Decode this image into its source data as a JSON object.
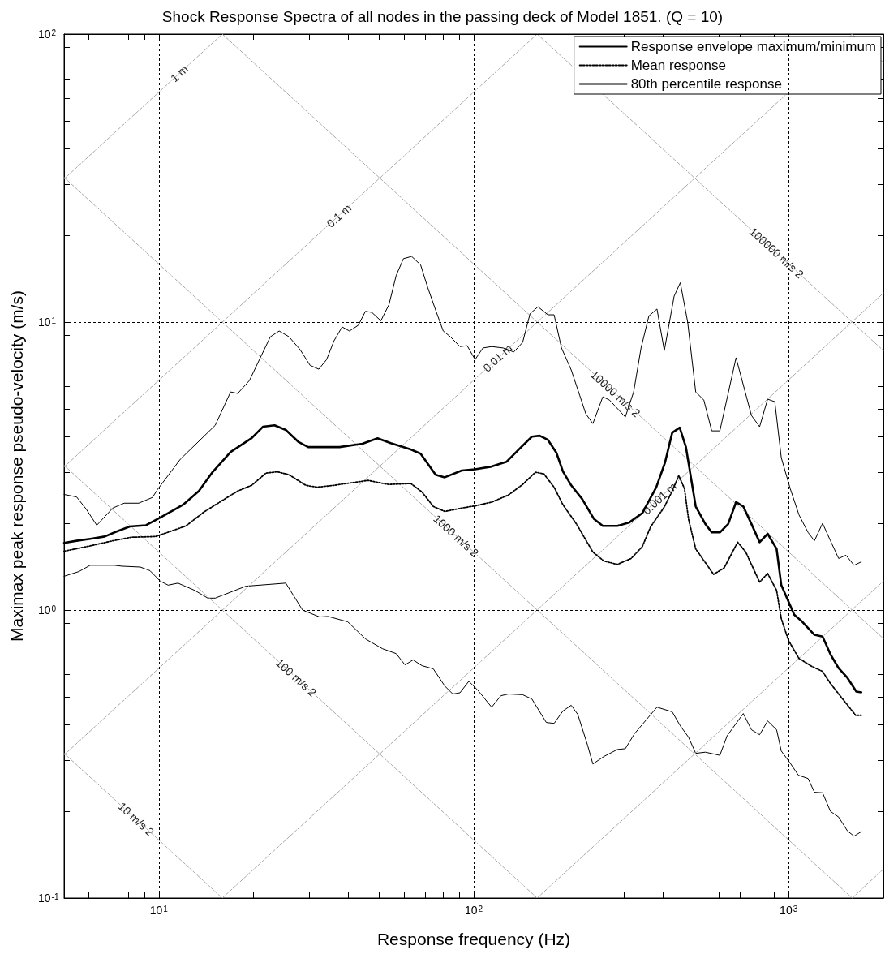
{
  "chart_data": {
    "type": "line",
    "title": "Shock Response Spectra of all nodes in the passing deck of Model 1851. (Q = 10)",
    "xlabel": "Response frequency (Hz)",
    "ylabel": "Maximax peak response pseudo-velocity (m/s)",
    "log": "xy",
    "grid": true,
    "legend": "top right",
    "marker": "none",
    "xlim": [
      5,
      2000
    ],
    "ylim": [
      0.1,
      100
    ],
    "xticks": [
      {
        "value": 5,
        "label": null
      },
      {
        "value": 6,
        "label": null
      },
      {
        "value": 7,
        "label": null
      },
      {
        "value": 8,
        "label": null
      },
      {
        "value": 9,
        "label": null
      },
      {
        "value": 10,
        "label": "10$^{1}$"
      },
      {
        "value": 20,
        "label": null
      },
      {
        "value": 30,
        "label": null
      },
      {
        "value": 40,
        "label": null
      },
      {
        "value": 50,
        "label": null
      },
      {
        "value": 60,
        "label": null
      },
      {
        "value": 70,
        "label": null
      },
      {
        "value": 80,
        "label": null
      },
      {
        "value": 90,
        "label": null
      },
      {
        "value": 100,
        "label": "10$^{2}$"
      },
      {
        "value": 200,
        "label": null
      },
      {
        "value": 300,
        "label": null
      },
      {
        "value": 400,
        "label": null
      },
      {
        "value": 500,
        "label": null
      },
      {
        "value": 600,
        "label": null
      },
      {
        "value": 700,
        "label": null
      },
      {
        "value": 800,
        "label": null
      },
      {
        "value": 900,
        "label": null
      },
      {
        "value": 1000,
        "label": "10$^{3}$"
      },
      {
        "value": 2000,
        "label": null
      }
    ],
    "yticks": [
      {
        "value": 0.1,
        "label": "10$^{-1}$"
      },
      {
        "value": 0.2,
        "label": null
      },
      {
        "value": 0.3,
        "label": null
      },
      {
        "value": 0.4,
        "label": null
      },
      {
        "value": 0.5,
        "label": null
      },
      {
        "value": 0.6,
        "label": null
      },
      {
        "value": 0.7,
        "label": null
      },
      {
        "value": 0.8,
        "label": null
      },
      {
        "value": 0.9,
        "label": null
      },
      {
        "value": 1,
        "label": "10$^{0}$"
      },
      {
        "value": 2,
        "label": null
      },
      {
        "value": 3,
        "label": null
      },
      {
        "value": 4,
        "label": null
      },
      {
        "value": 5,
        "label": null
      },
      {
        "value": 6,
        "label": null
      },
      {
        "value": 7,
        "label": null
      },
      {
        "value": 8,
        "label": null
      },
      {
        "value": 9,
        "label": null
      },
      {
        "value": 10,
        "label": "10$^{1}$"
      },
      {
        "value": 20,
        "label": null
      },
      {
        "value": 30,
        "label": null
      },
      {
        "value": 40,
        "label": null
      },
      {
        "value": 50,
        "label": null
      },
      {
        "value": 60,
        "label": null
      },
      {
        "value": 70,
        "label": null
      },
      {
        "value": 80,
        "label": null
      },
      {
        "value": 90,
        "label": null
      },
      {
        "value": 100,
        "label": "10$^{2}$"
      }
    ],
    "series": [
      {
        "name": "Response envelope maximum/minimum",
        "color": "#000000",
        "line_style": "solid",
        "x": [
          5.0,
          5.48,
          5.88,
          6.35,
          7.14,
          7.76,
          8.63,
          9.54,
          9.9,
          11.7,
          15.1,
          16.9,
          17.8,
          19.4,
          21.0,
          22.6,
          24.1,
          25.9,
          28.1,
          30.2,
          32.2,
          34.1,
          36.0,
          38.2,
          40.3,
          43.0,
          45.3,
          47.5,
          50.7,
          53.8,
          56.7,
          59.8,
          63.5,
          67.8,
          71.4,
          75.7,
          80.0,
          84.3,
          90.4,
          95.3,
          101,
          107,
          114,
          124,
          134,
          143,
          151,
          160,
          172,
          180,
          190,
          204,
          217,
          227,
          239,
          257,
          270,
          303,
          322,
          340,
          360,
          382,
          403,
          433,
          453,
          478,
          507,
          538,
          570,
          605,
          681,
          762,
          809,
          858,
          904,
          948,
          1012,
          1079,
          1153,
          1208,
          1282,
          1358,
          1442,
          1521,
          1614,
          1702
        ],
        "values": [
          2.52,
          2.47,
          2.24,
          1.97,
          2.26,
          2.35,
          2.35,
          2.46,
          2.62,
          3.34,
          4.38,
          5.72,
          5.65,
          6.27,
          7.52,
          8.89,
          9.31,
          8.89,
          8.02,
          7.08,
          6.86,
          7.41,
          8.61,
          9.62,
          9.31,
          9.75,
          10.9,
          10.8,
          10.1,
          11.5,
          14.5,
          16.6,
          16.9,
          15.8,
          13.2,
          11.0,
          9.31,
          8.89,
          8.22,
          8.28,
          7.41,
          8.13,
          8.22,
          8.13,
          7.87,
          8.5,
          10.7,
          11.3,
          10.6,
          10.6,
          8.13,
          6.82,
          5.57,
          4.8,
          4.44,
          5.5,
          5.36,
          4.68,
          5.72,
          8.13,
          10.5,
          11.1,
          7.96,
          12.3,
          13.7,
          10.0,
          5.72,
          5.36,
          4.19,
          4.19,
          7.52,
          4.74,
          4.33,
          5.4,
          5.29,
          3.38,
          2.64,
          2.14,
          1.86,
          1.74,
          2.0,
          1.74,
          1.51,
          1.55,
          1.43,
          1.47
        ]
      },
      {
        "color": "#000000",
        "line_style": "solid",
        "x": [
          5.0,
          5.57,
          6.05,
          7.22,
          7.62,
          8.73,
          9.37,
          10.1,
          10.7,
          11.5,
          13.0,
          14.3,
          15.1,
          18.9,
          25.3,
          28.6,
          32.4,
          34.5,
          39.8,
          45.3,
          51.3,
          56.7,
          60.5,
          64.2,
          68.5,
          74.4,
          80.9,
          85.8,
          90.4,
          96.5,
          103,
          114,
          122,
          129,
          143,
          153,
          170,
          180,
          192,
          204,
          214,
          230,
          239,
          259,
          286,
          303,
          324,
          382,
          427,
          453,
          481,
          507,
          544,
          605,
          638,
          718,
          762,
          809,
          858,
          916,
          948,
          1012,
          1074,
          1153,
          1208,
          1282,
          1358,
          1442,
          1538,
          1614,
          1702
        ],
        "values": [
          1.31,
          1.36,
          1.43,
          1.43,
          1.42,
          1.41,
          1.37,
          1.26,
          1.22,
          1.24,
          1.17,
          1.1,
          1.1,
          1.21,
          1.24,
          1.0,
          0.946,
          0.95,
          0.91,
          0.794,
          0.734,
          0.706,
          0.645,
          0.671,
          0.641,
          0.625,
          0.545,
          0.511,
          0.516,
          0.566,
          0.527,
          0.46,
          0.504,
          0.511,
          0.508,
          0.491,
          0.407,
          0.404,
          0.446,
          0.467,
          0.434,
          0.339,
          0.292,
          0.31,
          0.328,
          0.33,
          0.372,
          0.46,
          0.443,
          0.396,
          0.362,
          0.318,
          0.321,
          0.313,
          0.366,
          0.437,
          0.384,
          0.369,
          0.412,
          0.384,
          0.324,
          0.294,
          0.267,
          0.26,
          0.233,
          0.232,
          0.2,
          0.191,
          0.171,
          0.164,
          0.17
        ]
      },
      {
        "name": "Mean response",
        "color": "#000000",
        "line_style": "dotted",
        "x": [
          5.0,
          6.05,
          7.14,
          8.18,
          9.77,
          10.8,
          12.2,
          13.9,
          15.8,
          17.8,
          19.7,
          21.9,
          23.8,
          25.9,
          29.3,
          31.8,
          36.0,
          46.1,
          53.5,
          63.1,
          68.5,
          74.4,
          80.9,
          91.6,
          101,
          114,
          129,
          143,
          157,
          167,
          180,
          192,
          212,
          239,
          259,
          286,
          316,
          343,
          365,
          403,
          427,
          448,
          467,
          481,
          507,
          578,
          624,
          689,
          731,
          809,
          858,
          916,
          948,
          1000,
          1079,
          1186,
          1282,
          1358,
          1476,
          1633,
          1702
        ],
        "values": [
          1.6,
          1.67,
          1.74,
          1.79,
          1.8,
          1.87,
          1.96,
          2.19,
          2.39,
          2.59,
          2.71,
          2.99,
          3.02,
          2.95,
          2.71,
          2.67,
          2.71,
          2.82,
          2.73,
          2.75,
          2.57,
          2.29,
          2.2,
          2.26,
          2.3,
          2.37,
          2.51,
          2.73,
          3.01,
          2.97,
          2.67,
          2.32,
          1.99,
          1.59,
          1.48,
          1.44,
          1.51,
          1.66,
          1.95,
          2.28,
          2.59,
          2.93,
          2.64,
          2.07,
          1.63,
          1.33,
          1.4,
          1.72,
          1.59,
          1.25,
          1.34,
          1.17,
          0.933,
          0.783,
          0.679,
          0.637,
          0.612,
          0.556,
          0.495,
          0.431,
          0.431
        ]
      },
      {
        "name": "80th percentile response",
        "color": "#000000",
        "line_style": "solid",
        "x": [
          5.0,
          5.48,
          6.12,
          6.73,
          7.31,
          8.09,
          9.1,
          9.9,
          11.1,
          12.0,
          13.4,
          14.8,
          16.9,
          19.7,
          21.4,
          23.3,
          25.3,
          27.8,
          29.8,
          37.5,
          44.3,
          49.5,
          54.5,
          63.1,
          67.8,
          75.7,
          80.9,
          91.6,
          101,
          114,
          127,
          139,
          153,
          162,
          172,
          183,
          192,
          204,
          221,
          241,
          257,
          286,
          311,
          343,
          380,
          405,
          427,
          451,
          472,
          507,
          544,
          570,
          605,
          643,
          681,
          718,
          762,
          809,
          858,
          916,
          948,
          1042,
          1106,
          1208,
          1282,
          1358,
          1442,
          1538,
          1641,
          1702
        ],
        "values": [
          1.71,
          1.74,
          1.77,
          1.8,
          1.87,
          1.95,
          1.97,
          2.07,
          2.22,
          2.33,
          2.59,
          3.01,
          3.54,
          3.95,
          4.33,
          4.38,
          4.22,
          3.83,
          3.68,
          3.68,
          3.78,
          3.95,
          3.8,
          3.61,
          3.49,
          2.95,
          2.89,
          3.05,
          3.08,
          3.15,
          3.27,
          3.61,
          4.0,
          4.03,
          3.9,
          3.52,
          3.03,
          2.71,
          2.43,
          2.07,
          1.96,
          1.96,
          2.01,
          2.17,
          2.67,
          3.25,
          4.13,
          4.3,
          3.68,
          2.29,
          1.99,
          1.86,
          1.86,
          1.99,
          2.37,
          2.29,
          1.99,
          1.72,
          1.84,
          1.63,
          1.22,
          0.964,
          0.91,
          0.82,
          0.809,
          0.702,
          0.628,
          0.581,
          0.521,
          0.518
        ]
      },
      {
        "color": "#a6a6a6",
        "line_style": "dashed",
        "x": [
          5,
          15.9
        ],
        "values": [
          31.4,
          100
        ]
      },
      {
        "color": "#a6a6a6",
        "line_style": "dashed",
        "x": [
          5,
          159
        ],
        "values": [
          3.14,
          100
        ]
      },
      {
        "color": "#a6a6a6",
        "line_style": "dashed",
        "x": [
          5,
          1592
        ],
        "values": [
          0.314,
          100
        ]
      },
      {
        "color": "#a6a6a6",
        "line_style": "dashed",
        "x": [
          15.9,
          2000
        ],
        "values": [
          0.1,
          12.6
        ]
      },
      {
        "color": "#a6a6a6",
        "line_style": "dashed",
        "x": [
          159,
          2000
        ],
        "values": [
          0.1,
          1.26
        ]
      },
      {
        "color": "#a6a6a6",
        "line_style": "dashed",
        "x": [
          1592,
          2000
        ],
        "values": [
          0.1,
          0.126
        ]
      },
      {
        "color": "#a6a6a6",
        "line_style": "dashed",
        "x": [
          5,
          15.9
        ],
        "values": [
          0.318,
          0.1
        ]
      },
      {
        "color": "#a6a6a6",
        "line_style": "dashed",
        "x": [
          5,
          159
        ],
        "values": [
          3.18,
          0.1
        ]
      },
      {
        "color": "#a6a6a6",
        "line_style": "dashed",
        "x": [
          5,
          1592
        ],
        "values": [
          31.8,
          0.1
        ]
      },
      {
        "color": "#a6a6a6",
        "line_style": "dashed",
        "x": [
          15.9,
          2000
        ],
        "values": [
          100,
          0.796
        ]
      },
      {
        "color": "#a6a6a6",
        "line_style": "dashed",
        "x": [
          159,
          2000
        ],
        "values": [
          100,
          7.96
        ]
      },
      {
        "color": "#a6a6a6",
        "line_style": "dashed",
        "x": [
          1592,
          2000
        ],
        "values": [
          100,
          79.6
        ]
      }
    ],
    "annotations": [
      {
        "text": "1 m",
        "x": 11.6,
        "y": 73
      },
      {
        "text": "0.1 m",
        "x": 37.3,
        "y": 23.4
      },
      {
        "text": "0.01 m",
        "x": 119,
        "y": 7.5
      },
      {
        "text": "0.001 m",
        "x": 389,
        "y": 2.44
      },
      {
        "text": "10 m/s 2",
        "x": 8.47,
        "y": 0.188
      },
      {
        "text": "100 m/s 2",
        "x": 27.3,
        "y": 0.583
      },
      {
        "text": "1000 m/s 2",
        "x": 87.9,
        "y": 1.81
      },
      {
        "text": "10000 m/s 2",
        "x": 282,
        "y": 5.64
      },
      {
        "text": "100000 m/s 2",
        "x": 916,
        "y": 17.4
      }
    ]
  }
}
